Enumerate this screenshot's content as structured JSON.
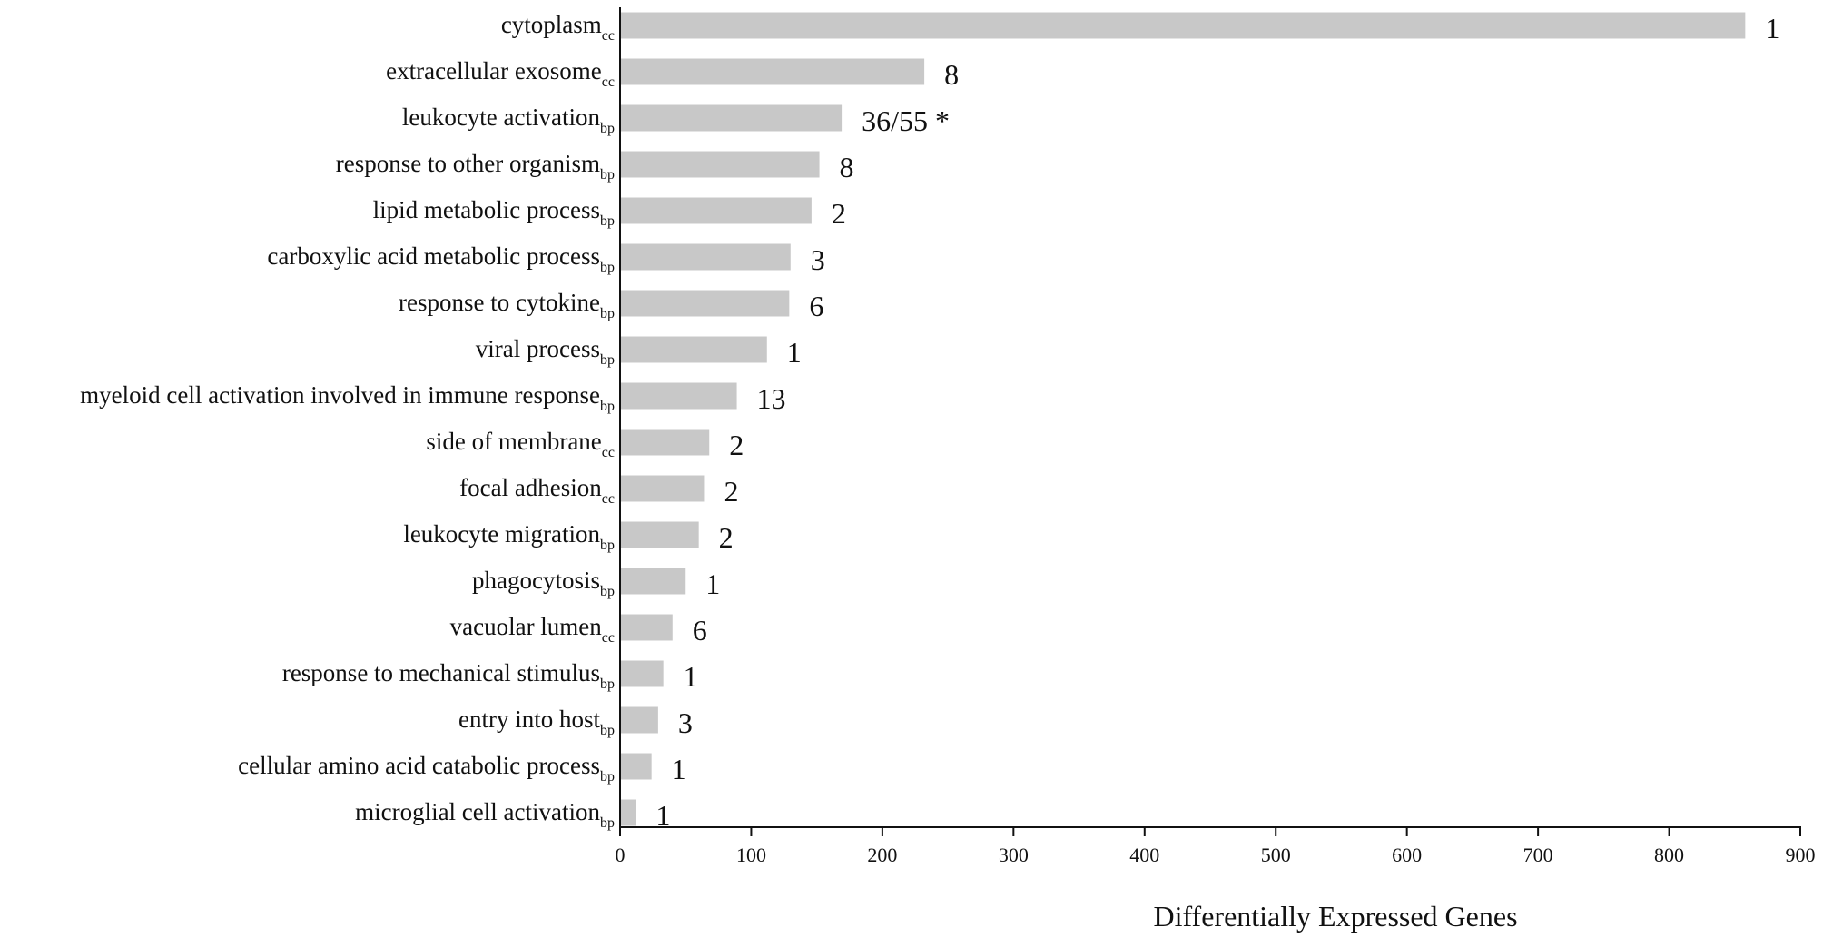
{
  "chart_data": {
    "type": "bar",
    "orientation": "horizontal",
    "xlabel": "Differentially Expressed Genes",
    "ylabel": "",
    "xlim": [
      0,
      900
    ],
    "xticks": [
      "0",
      "100",
      "200",
      "300",
      "400",
      "500",
      "600",
      "700",
      "800",
      "900"
    ],
    "grid": false,
    "bar_color": "#c8c8c8",
    "categories": [
      {
        "label": "cytoplasm",
        "sub": "cc"
      },
      {
        "label": "extracellular exosome",
        "sub": "cc"
      },
      {
        "label": "leukocyte activation",
        "sub": "bp"
      },
      {
        "label": "response to other organism",
        "sub": "bp"
      },
      {
        "label": "lipid metabolic process",
        "sub": "bp"
      },
      {
        "label": "carboxylic acid metabolic process",
        "sub": "bp"
      },
      {
        "label": "response to cytokine",
        "sub": "bp"
      },
      {
        "label": "viral process",
        "sub": "bp"
      },
      {
        "label": "myeloid cell activation involved in immune response",
        "sub": "bp"
      },
      {
        "label": "side of membrane",
        "sub": "cc"
      },
      {
        "label": "focal adhesion",
        "sub": "cc"
      },
      {
        "label": "leukocyte migration",
        "sub": "bp"
      },
      {
        "label": "phagocytosis",
        "sub": "bp"
      },
      {
        "label": "vacuolar lumen",
        "sub": "cc"
      },
      {
        "label": "response to mechanical stimulus",
        "sub": "bp"
      },
      {
        "label": "entry into host",
        "sub": "bp"
      },
      {
        "label": "cellular amino acid catabolic process",
        "sub": "bp"
      },
      {
        "label": "microglial cell activation",
        "sub": "bp"
      }
    ],
    "values": [
      858,
      232,
      169,
      152,
      146,
      130,
      129,
      112,
      89,
      68,
      64,
      60,
      50,
      40,
      33,
      29,
      24,
      12
    ],
    "data_labels": [
      "1",
      "8",
      "36/55 *",
      "8",
      "2",
      "3",
      "6",
      "1",
      "13",
      "2",
      "2",
      "2",
      "1",
      "6",
      "1",
      "3",
      "1",
      "1"
    ]
  }
}
